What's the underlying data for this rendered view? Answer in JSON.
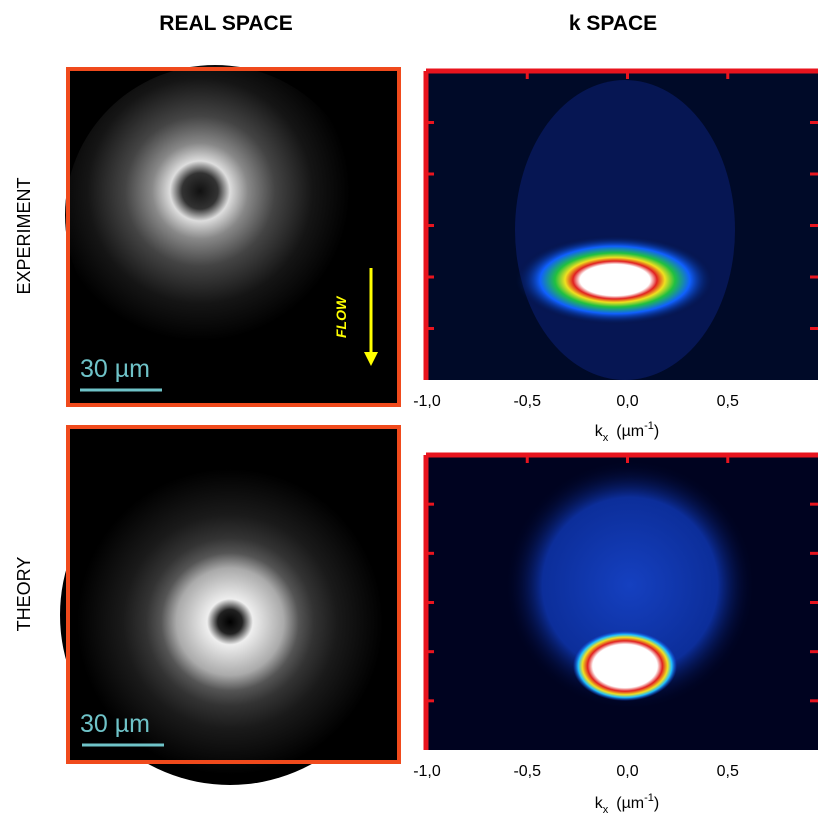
{
  "columns": [
    "REAL SPACE",
    "k SPACE"
  ],
  "rows": [
    "EXPERIMENT",
    "THEORY"
  ],
  "scale_bar": "30 µm",
  "flow_label": "FLOW",
  "k_axis": {
    "xlim": [
      -1,
      0.95
    ],
    "xticks": [
      {
        "value": -1,
        "label": "-1,0"
      },
      {
        "value": -0.5,
        "label": "-0,5"
      },
      {
        "value": 0,
        "label": "0,0"
      },
      {
        "value": 0.5,
        "label": "0,5"
      }
    ],
    "label": {
      "main": "k",
      "sub": "x",
      "unit": "(µm",
      "sup": "-1",
      "close": ")"
    }
  }
}
